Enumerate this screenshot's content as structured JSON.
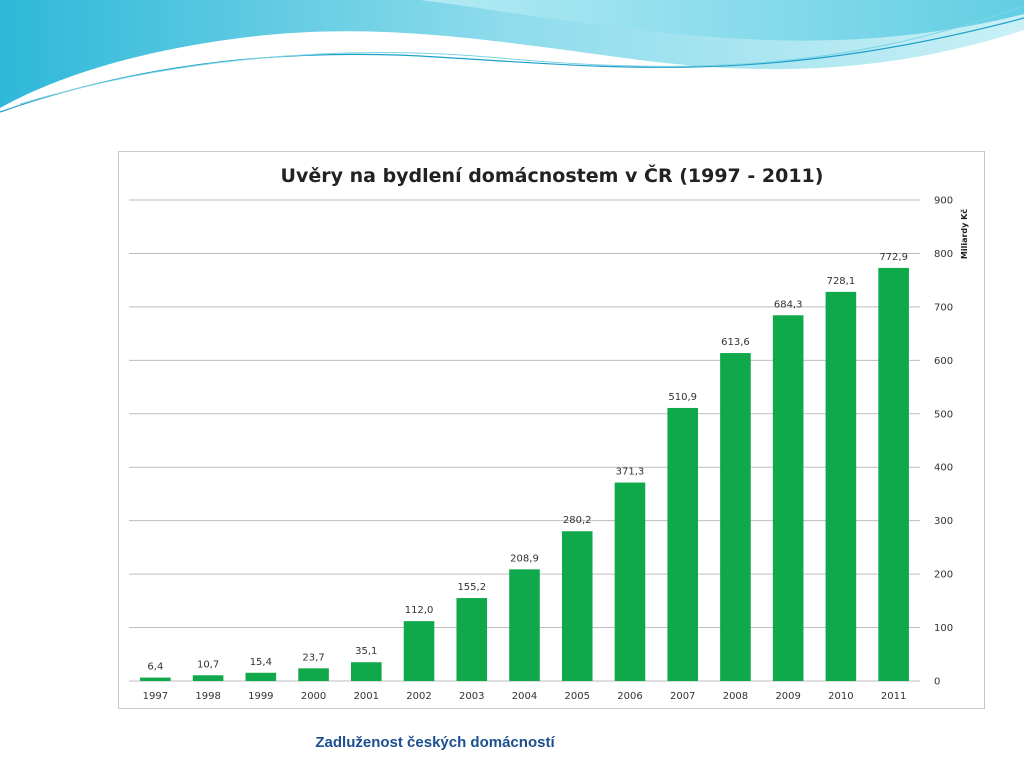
{
  "slide": {
    "caption": "Zadluženost českých domácností",
    "accent_colors": [
      "#3fc3dd",
      "#9fe3ee",
      "#1e9fc8"
    ]
  },
  "chart_data": {
    "type": "bar",
    "title": "Uvěry na bydlení domácnostem v ČR (1997 - 2011)",
    "ylabel": "Miliardy Kč",
    "xlabel": "",
    "categories": [
      "1997",
      "1998",
      "1999",
      "2000",
      "2001",
      "2002",
      "2003",
      "2004",
      "2005",
      "2006",
      "2007",
      "2008",
      "2009",
      "2010",
      "2011"
    ],
    "values": [
      6.4,
      10.7,
      15.4,
      23.7,
      35.1,
      112.0,
      155.2,
      208.9,
      280.2,
      371.3,
      510.9,
      613.6,
      684.3,
      728.1,
      772.9
    ],
    "data_labels": [
      "6,4",
      "10,7",
      "15,4",
      "23,7",
      "35,1",
      "112,0",
      "155,2",
      "208,9",
      "280,2",
      "371,3",
      "510,9",
      "613,6",
      "684,3",
      "728,1",
      "772,9"
    ],
    "ylim": [
      0,
      900
    ],
    "yticks": [
      0,
      100,
      200,
      300,
      400,
      500,
      600,
      700,
      800,
      900
    ],
    "y_axis_side": "right",
    "grid": true,
    "legend": "none",
    "bar_color": "#0fa84a",
    "grid_color": "#bdbdbd"
  }
}
